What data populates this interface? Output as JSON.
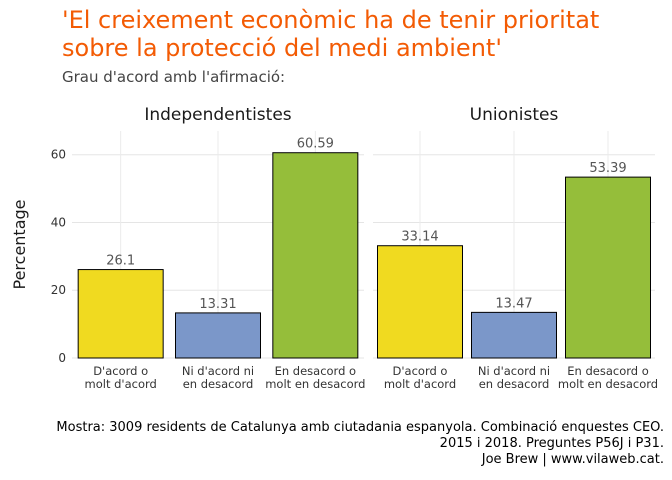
{
  "title": "'El creixement econòmic ha de tenir prioritat\nsobre la protecció del medi ambient'",
  "subtitle": "Grau d'acord amb l'afirmació:",
  "caption": [
    "Mostra: 3009 residents de Catalunya amb ciutadania espanyola. Combinació enquestes CEO.",
    "2015 i 2018. Preguntes P56J i P31.",
    "Joe Brew | www.vilaweb.cat."
  ],
  "chart_data": {
    "type": "bar",
    "ylabel": "Percentage",
    "ylim": [
      0,
      67
    ],
    "yticks": [
      0,
      20,
      40,
      60
    ],
    "grid": true,
    "categories": [
      "D'acord o\nmolt d'acord",
      "Ni d'acord ni\nen desacord",
      "En desacord o\nmolt en desacord"
    ],
    "colors": [
      "#f0da20",
      "#7b97c9",
      "#95be3a"
    ],
    "panels": [
      {
        "name": "Independentistes",
        "values": [
          26.1,
          13.31,
          60.59
        ],
        "labels": [
          "26.1",
          "13.31",
          "60.59"
        ]
      },
      {
        "name": "Unionistes",
        "values": [
          33.14,
          13.47,
          53.39
        ],
        "labels": [
          "33.14",
          "13.47",
          "53.39"
        ]
      }
    ]
  }
}
